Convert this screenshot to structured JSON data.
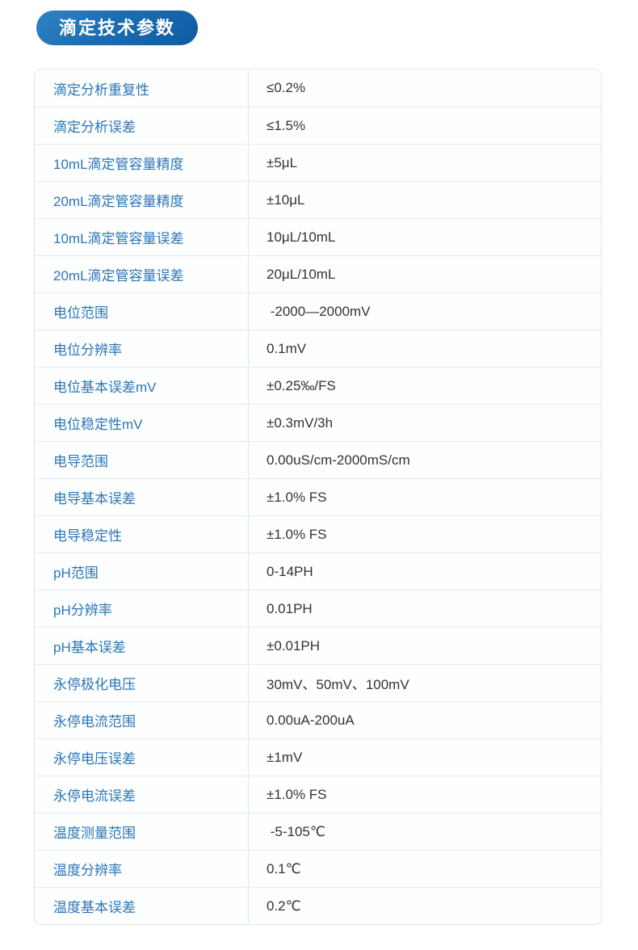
{
  "page": {
    "background_color": "#ffffff"
  },
  "header": {
    "title": "滴定技术参数",
    "badge_gradient_start": "#2f83c5",
    "badge_gradient_end": "#0f5ba3",
    "text_color": "#ffffff"
  },
  "table": {
    "name_color": "#2b76b8",
    "value_color": "#333333",
    "divider_color": "#dde7f0",
    "row_line_color": "#e3ebf1",
    "rows": [
      {
        "name": "滴定分析重复性",
        "value": "≤0.2%"
      },
      {
        "name": "滴定分析误差",
        "value": "≤1.5%"
      },
      {
        "name": "10mL滴定管容量精度",
        "value": "±5μL"
      },
      {
        "name": "20mL滴定管容量精度",
        "value": "±10μL"
      },
      {
        "name": "10mL滴定管容量误差",
        "value": "10μL/10mL"
      },
      {
        "name": "20mL滴定管容量误差",
        "value": "20μL/10mL"
      },
      {
        "name": "电位范围",
        "value": " -2000—2000mV"
      },
      {
        "name": "电位分辨率",
        "value": "0.1mV"
      },
      {
        "name": "电位基本误差mV",
        "value": "±0.25‰/FS"
      },
      {
        "name": "电位稳定性mV",
        "value": "±0.3mV/3h"
      },
      {
        "name": "电导范围",
        "value": "0.00uS/cm-2000mS/cm"
      },
      {
        "name": "电导基本误差",
        "value": "±1.0% FS"
      },
      {
        "name": "电导稳定性",
        "value": "±1.0% FS"
      },
      {
        "name": "pH范围",
        "value": "0-14PH"
      },
      {
        "name": "pH分辨率",
        "value": "0.01PH"
      },
      {
        "name": "pH基本误差",
        "value": "±0.01PH"
      },
      {
        "name": "永停极化电压",
        "value": "30mV、50mV、100mV"
      },
      {
        "name": "永停电流范围",
        "value": "0.00uA-200uA"
      },
      {
        "name": "永停电压误差",
        "value": "±1mV"
      },
      {
        "name": "永停电流误差",
        "value": "±1.0% FS"
      },
      {
        "name": "温度测量范围",
        "value": " -5-105℃"
      },
      {
        "name": "温度分辨率",
        "value": "0.1℃"
      },
      {
        "name": "温度基本误差",
        "value": "0.2℃"
      }
    ]
  }
}
